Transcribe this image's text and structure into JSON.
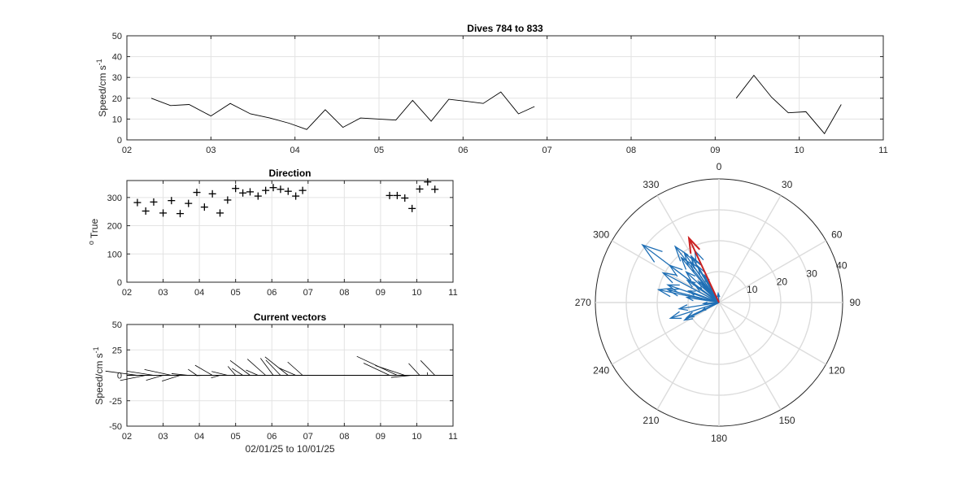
{
  "chart_data": [
    {
      "type": "line",
      "title": "Dives 784 to 833",
      "ylabel": "Speed/cm s",
      "ylabel_exponent": "-1",
      "xlim": [
        2,
        11
      ],
      "ylim": [
        0,
        50
      ],
      "x_ticks": [
        2,
        3,
        4,
        5,
        6,
        7,
        8,
        9,
        10,
        11
      ],
      "x_tick_labels": [
        "02",
        "03",
        "04",
        "05",
        "06",
        "07",
        "08",
        "09",
        "10",
        "11"
      ],
      "y_ticks": [
        0,
        10,
        20,
        30,
        40,
        50
      ],
      "y_tick_labels": [
        "0",
        "10",
        "20",
        "30",
        "40",
        "50"
      ],
      "grid": true,
      "series": [
        {
          "color": "#000000",
          "segments": [
            {
              "x": [
                2.29,
                2.52,
                2.74,
                3.0,
                3.23,
                3.47,
                3.7,
                3.93,
                4.14,
                4.36,
                4.57,
                4.78,
                5.0,
                5.2,
                5.4,
                5.62,
                5.83,
                6.04,
                6.24,
                6.45,
                6.66,
                6.85
              ],
              "y": [
                20,
                16.5,
                17,
                11.5,
                17.5,
                12.5,
                10.5,
                8,
                5,
                14.5,
                6,
                10.5,
                10,
                9.5,
                19,
                9,
                19.5,
                18.5,
                17.5,
                23,
                12.5,
                16
              ]
            },
            {
              "x": [
                9.25,
                9.46,
                9.67,
                9.87,
                10.08,
                10.3,
                10.5
              ],
              "y": [
                20,
                31,
                20.5,
                13,
                13.5,
                3,
                17
              ]
            }
          ]
        }
      ]
    },
    {
      "type": "scatter",
      "title": "Direction",
      "ylabel": "True",
      "ylabel_prefix": "o",
      "xlim": [
        2,
        11
      ],
      "ylim": [
        0,
        360
      ],
      "x_ticks": [
        2,
        3,
        4,
        5,
        6,
        7,
        8,
        9,
        10,
        11
      ],
      "x_tick_labels": [
        "02",
        "03",
        "04",
        "05",
        "06",
        "07",
        "08",
        "09",
        "10",
        "11"
      ],
      "y_ticks": [
        0,
        100,
        200,
        300
      ],
      "y_tick_labels": [
        "0",
        "100",
        "200",
        "300"
      ],
      "grid": true,
      "marker": "+",
      "series": [
        {
          "color": "#000000",
          "x": [
            2.29,
            2.52,
            2.74,
            3.0,
            3.23,
            3.47,
            3.7,
            3.93,
            4.14,
            4.36,
            4.57,
            4.78,
            5.0,
            5.2,
            5.4,
            5.62,
            5.83,
            6.04,
            6.24,
            6.45,
            6.66,
            6.85,
            9.25,
            9.46,
            9.67,
            9.87,
            10.08,
            10.3,
            10.5
          ],
          "y": [
            282,
            252,
            284,
            245,
            289,
            243,
            279,
            318,
            266,
            313,
            245,
            291,
            332,
            316,
            320,
            305,
            325,
            335,
            329,
            322,
            305,
            325,
            307,
            307,
            298,
            261,
            330,
            355,
            329
          ]
        }
      ]
    },
    {
      "type": "vector",
      "title": "Current vectors",
      "ylabel": "Speed/cm s",
      "ylabel_exponent": "-1",
      "xlabel": "02/01/25 to 10/01/25",
      "xlim": [
        2,
        11
      ],
      "ylim": [
        -50,
        50
      ],
      "x_ticks": [
        2,
        3,
        4,
        5,
        6,
        7,
        8,
        9,
        10,
        11
      ],
      "x_tick_labels": [
        "02",
        "03",
        "04",
        "05",
        "06",
        "07",
        "08",
        "09",
        "10",
        "11"
      ],
      "y_ticks": [
        -50,
        -25,
        0,
        25,
        50
      ],
      "y_tick_labels": [
        "-50",
        "-25",
        "0",
        "25",
        "50"
      ],
      "grid": true,
      "note": "sticks start at (t,0) with east/north speed components from the direction and speed series",
      "series": [
        {
          "color": "#000000"
        }
      ]
    },
    {
      "type": "polar",
      "title": "",
      "angle_ticks": [
        0,
        30,
        60,
        90,
        120,
        150,
        180,
        210,
        240,
        270,
        300,
        330
      ],
      "angle_tick_labels": [
        "0",
        "30",
        "60",
        "90",
        "120",
        "150",
        "180",
        "210",
        "240",
        "270",
        "300",
        "330"
      ],
      "radial_ticks": [
        10,
        20,
        30,
        40
      ],
      "radial_tick_labels": [
        "10",
        "20",
        "30",
        "40"
      ],
      "rmax": 40,
      "angle_zero": "top",
      "angle_direction": "clockwise",
      "grid": true,
      "series": [
        {
          "name": "",
          "color": "#1f6fb5",
          "from": "speed and direction of each dive"
        },
        {
          "name": "",
          "color": "#cc2222",
          "angle": 335,
          "r": 23
        }
      ]
    }
  ]
}
